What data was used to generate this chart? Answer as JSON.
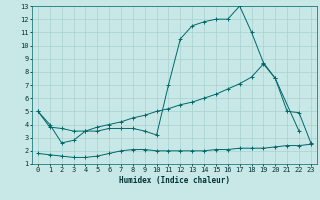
{
  "xlabel": "Humidex (Indice chaleur)",
  "bg_color": "#c8e8e8",
  "grid_color": "#a8d0d0",
  "line_color": "#006868",
  "xlim": [
    -0.5,
    23.5
  ],
  "ylim": [
    1,
    13
  ],
  "xticks": [
    0,
    1,
    2,
    3,
    4,
    5,
    6,
    7,
    8,
    9,
    10,
    11,
    12,
    13,
    14,
    15,
    16,
    17,
    18,
    19,
    20,
    21,
    22,
    23
  ],
  "yticks": [
    1,
    2,
    3,
    4,
    5,
    6,
    7,
    8,
    9,
    10,
    11,
    12,
    13
  ],
  "line1_x": [
    0,
    1,
    2,
    3,
    4,
    5,
    6,
    7,
    8,
    9,
    10,
    11,
    12,
    13,
    14,
    15,
    16,
    17,
    18,
    19,
    20,
    22
  ],
  "line1_y": [
    5,
    4,
    2.6,
    2.8,
    3.5,
    3.5,
    3.7,
    3.7,
    3.7,
    3.5,
    3.2,
    7.0,
    10.5,
    11.5,
    11.8,
    12.0,
    12.0,
    13.0,
    11.0,
    8.7,
    7.5,
    3.5
  ],
  "line2_x": [
    0,
    1,
    2,
    3,
    4,
    5,
    6,
    7,
    8,
    9,
    10,
    11,
    12,
    13,
    14,
    15,
    16,
    17,
    18,
    19,
    20,
    21,
    22,
    23
  ],
  "line2_y": [
    5.0,
    3.8,
    3.7,
    3.5,
    3.5,
    3.8,
    4.0,
    4.2,
    4.5,
    4.7,
    5.0,
    5.2,
    5.5,
    5.7,
    6.0,
    6.3,
    6.7,
    7.1,
    7.6,
    8.6,
    7.5,
    5.0,
    4.9,
    2.6
  ],
  "line3_x": [
    0,
    1,
    2,
    3,
    4,
    5,
    6,
    7,
    8,
    9,
    10,
    11,
    12,
    13,
    14,
    15,
    16,
    17,
    18,
    19,
    20,
    21,
    22,
    23
  ],
  "line3_y": [
    1.8,
    1.7,
    1.6,
    1.5,
    1.5,
    1.6,
    1.8,
    2.0,
    2.1,
    2.1,
    2.0,
    2.0,
    2.0,
    2.0,
    2.0,
    2.1,
    2.1,
    2.2,
    2.2,
    2.2,
    2.3,
    2.4,
    2.4,
    2.5
  ]
}
